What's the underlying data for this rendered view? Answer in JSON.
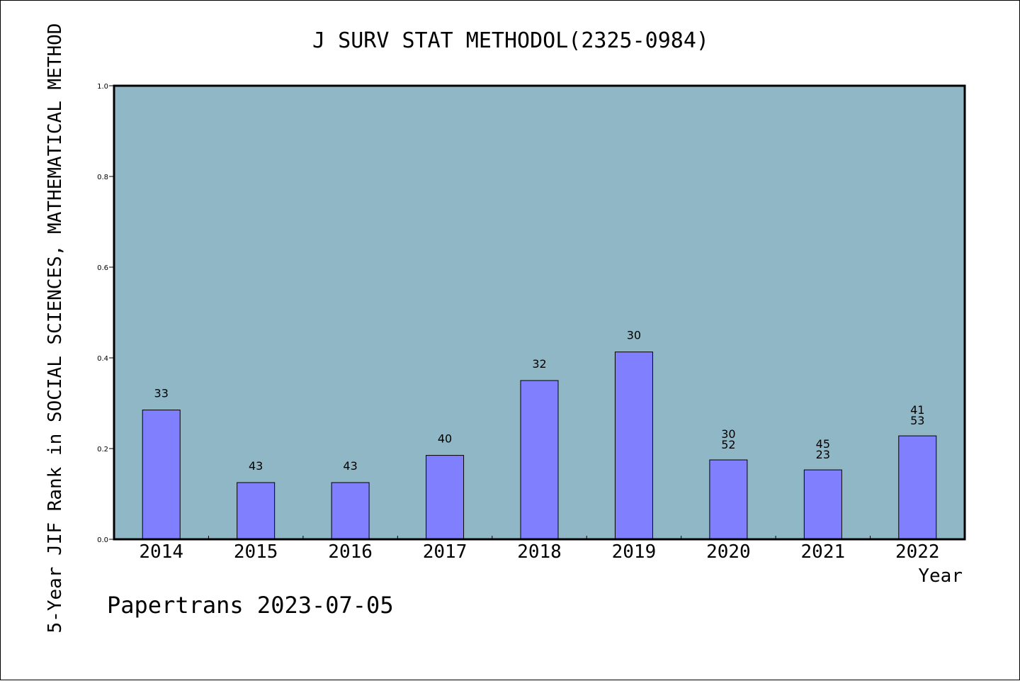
{
  "chart_data": {
    "type": "bar",
    "title": "J SURV STAT METHODOL(2325-0984)",
    "ylabel": "5-Year JIF Rank in SOCIAL SCIENCES, MATHEMATICAL METHOD",
    "xlabel": "Year",
    "categories": [
      "2014",
      "2015",
      "2016",
      "2017",
      "2018",
      "2019",
      "2020",
      "2021",
      "2022"
    ],
    "values": [
      0.285,
      0.125,
      0.125,
      0.185,
      0.35,
      0.413,
      0.175,
      0.153,
      0.228
    ],
    "labels": [
      [
        "33"
      ],
      [
        "43"
      ],
      [
        "43"
      ],
      [
        "40"
      ],
      [
        "32"
      ],
      [
        "30"
      ],
      [
        "30",
        "52"
      ],
      [
        "45",
        "23"
      ],
      [
        "41",
        "53"
      ]
    ],
    "ylim": [
      0,
      1.0
    ],
    "yticks": [
      "0.0",
      "0.2",
      "0.4",
      "0.6",
      "0.8",
      "1.0"
    ],
    "grid": false,
    "colors": {
      "plot_background": "#8fb7c6",
      "bar_fill": "#8080ff",
      "bar_stroke": "#000000"
    }
  },
  "footer_text": "Papertrans 2023-07-05"
}
